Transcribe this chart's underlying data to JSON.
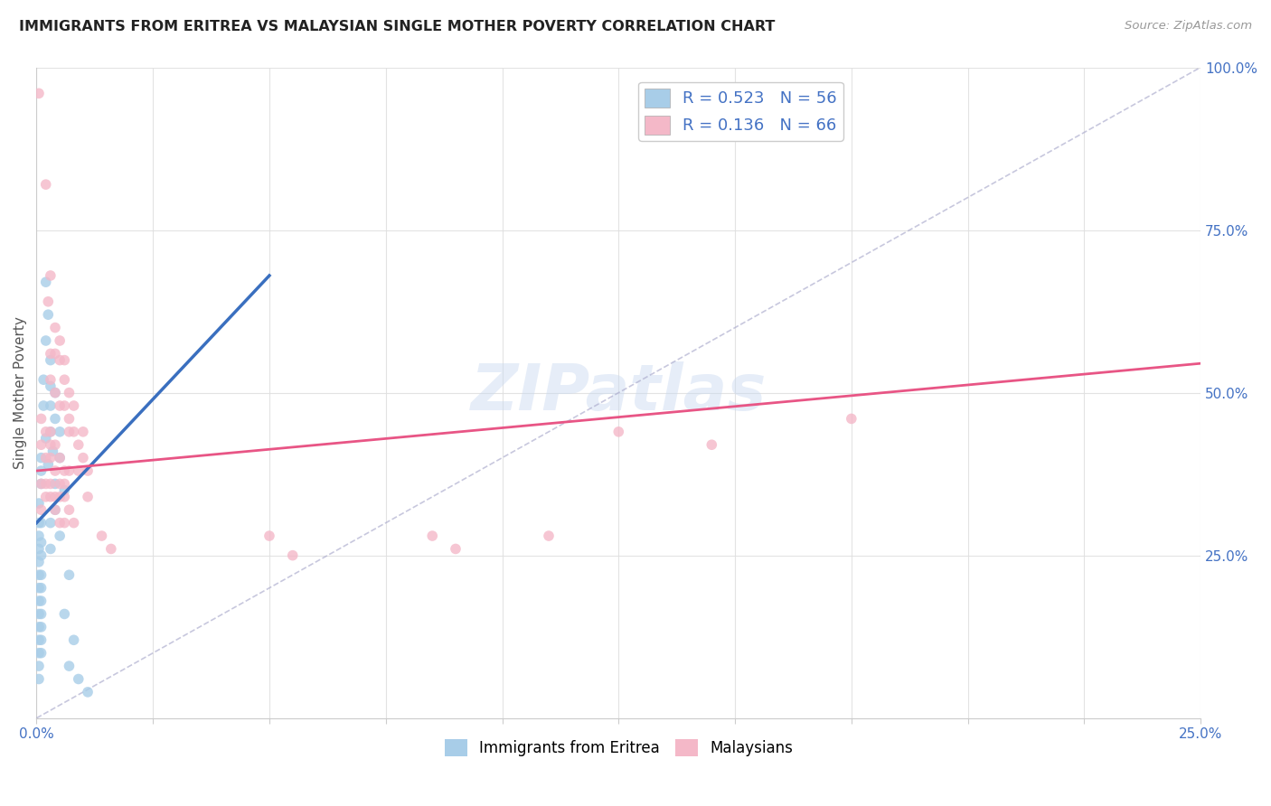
{
  "title": "IMMIGRANTS FROM ERITREA VS MALAYSIAN SINGLE MOTHER POVERTY CORRELATION CHART",
  "source": "Source: ZipAtlas.com",
  "ylabel": "Single Mother Poverty",
  "xlim": [
    0.0,
    0.25
  ],
  "ylim": [
    0.0,
    1.0
  ],
  "ytick_labels_right": [
    "100.0%",
    "75.0%",
    "50.0%",
    "25.0%"
  ],
  "ytick_positions_right": [
    1.0,
    0.75,
    0.5,
    0.25
  ],
  "watermark": "ZIPatlas",
  "legend_r1": "0.523",
  "legend_n1": "56",
  "legend_r2": "0.136",
  "legend_n2": "66",
  "blue_color": "#a8cde8",
  "pink_color": "#f4b8c8",
  "blue_line_color": "#3a6fbf",
  "pink_line_color": "#e85585",
  "dashed_line_color": "#aaaacc",
  "title_color": "#222222",
  "source_color": "#999999",
  "right_label_color": "#4472c4",
  "bottom_label_color": "#4472c4",
  "scatter_blue": [
    [
      0.0005,
      0.33
    ],
    [
      0.001,
      0.36
    ],
    [
      0.001,
      0.38
    ],
    [
      0.001,
      0.4
    ],
    [
      0.001,
      0.3
    ],
    [
      0.001,
      0.27
    ],
    [
      0.001,
      0.25
    ],
    [
      0.001,
      0.22
    ],
    [
      0.001,
      0.2
    ],
    [
      0.001,
      0.18
    ],
    [
      0.001,
      0.16
    ],
    [
      0.001,
      0.14
    ],
    [
      0.001,
      0.12
    ],
    [
      0.001,
      0.1
    ],
    [
      0.0005,
      0.3
    ],
    [
      0.0005,
      0.28
    ],
    [
      0.0005,
      0.26
    ],
    [
      0.0005,
      0.24
    ],
    [
      0.0005,
      0.22
    ],
    [
      0.0005,
      0.2
    ],
    [
      0.0005,
      0.18
    ],
    [
      0.0005,
      0.16
    ],
    [
      0.0005,
      0.14
    ],
    [
      0.0005,
      0.12
    ],
    [
      0.0005,
      0.1
    ],
    [
      0.0005,
      0.08
    ],
    [
      0.0005,
      0.06
    ],
    [
      0.002,
      0.67
    ],
    [
      0.0025,
      0.62
    ],
    [
      0.002,
      0.58
    ],
    [
      0.003,
      0.55
    ],
    [
      0.003,
      0.51
    ],
    [
      0.003,
      0.48
    ],
    [
      0.003,
      0.44
    ],
    [
      0.0035,
      0.41
    ],
    [
      0.004,
      0.5
    ],
    [
      0.004,
      0.46
    ],
    [
      0.0015,
      0.52
    ],
    [
      0.0015,
      0.48
    ],
    [
      0.002,
      0.43
    ],
    [
      0.0025,
      0.39
    ],
    [
      0.004,
      0.36
    ],
    [
      0.004,
      0.32
    ],
    [
      0.003,
      0.3
    ],
    [
      0.003,
      0.26
    ],
    [
      0.005,
      0.44
    ],
    [
      0.005,
      0.4
    ],
    [
      0.006,
      0.35
    ],
    [
      0.005,
      0.28
    ],
    [
      0.007,
      0.22
    ],
    [
      0.006,
      0.16
    ],
    [
      0.008,
      0.12
    ],
    [
      0.007,
      0.08
    ],
    [
      0.009,
      0.06
    ],
    [
      0.011,
      0.04
    ]
  ],
  "scatter_pink": [
    [
      0.0005,
      0.96
    ],
    [
      0.002,
      0.82
    ],
    [
      0.003,
      0.68
    ],
    [
      0.0025,
      0.64
    ],
    [
      0.003,
      0.56
    ],
    [
      0.003,
      0.52
    ],
    [
      0.004,
      0.6
    ],
    [
      0.004,
      0.56
    ],
    [
      0.005,
      0.58
    ],
    [
      0.005,
      0.55
    ],
    [
      0.004,
      0.5
    ],
    [
      0.005,
      0.48
    ],
    [
      0.006,
      0.55
    ],
    [
      0.006,
      0.52
    ],
    [
      0.006,
      0.48
    ],
    [
      0.007,
      0.5
    ],
    [
      0.007,
      0.46
    ],
    [
      0.007,
      0.44
    ],
    [
      0.008,
      0.48
    ],
    [
      0.008,
      0.44
    ],
    [
      0.001,
      0.46
    ],
    [
      0.001,
      0.42
    ],
    [
      0.002,
      0.44
    ],
    [
      0.002,
      0.4
    ],
    [
      0.003,
      0.44
    ],
    [
      0.003,
      0.42
    ],
    [
      0.003,
      0.4
    ],
    [
      0.004,
      0.42
    ],
    [
      0.004,
      0.38
    ],
    [
      0.005,
      0.4
    ],
    [
      0.005,
      0.36
    ],
    [
      0.006,
      0.38
    ],
    [
      0.006,
      0.36
    ],
    [
      0.007,
      0.38
    ],
    [
      0.002,
      0.36
    ],
    [
      0.002,
      0.34
    ],
    [
      0.003,
      0.36
    ],
    [
      0.003,
      0.34
    ],
    [
      0.004,
      0.34
    ],
    [
      0.004,
      0.32
    ],
    [
      0.005,
      0.34
    ],
    [
      0.005,
      0.3
    ],
    [
      0.006,
      0.34
    ],
    [
      0.006,
      0.3
    ],
    [
      0.001,
      0.36
    ],
    [
      0.001,
      0.32
    ],
    [
      0.007,
      0.32
    ],
    [
      0.008,
      0.3
    ],
    [
      0.009,
      0.42
    ],
    [
      0.009,
      0.38
    ],
    [
      0.01,
      0.44
    ],
    [
      0.01,
      0.4
    ],
    [
      0.011,
      0.38
    ],
    [
      0.011,
      0.34
    ],
    [
      0.014,
      0.28
    ],
    [
      0.016,
      0.26
    ],
    [
      0.05,
      0.28
    ],
    [
      0.055,
      0.25
    ],
    [
      0.085,
      0.28
    ],
    [
      0.09,
      0.26
    ],
    [
      0.11,
      0.28
    ],
    [
      0.125,
      0.44
    ],
    [
      0.145,
      0.42
    ],
    [
      0.175,
      0.46
    ]
  ],
  "blue_line_x": [
    0.0,
    0.05
  ],
  "blue_line_y": [
    0.3,
    0.68
  ],
  "pink_line_x": [
    0.0,
    0.25
  ],
  "pink_line_y": [
    0.38,
    0.545
  ],
  "diag_line_x": [
    0.0,
    0.25
  ],
  "diag_line_y": [
    0.0,
    1.0
  ]
}
